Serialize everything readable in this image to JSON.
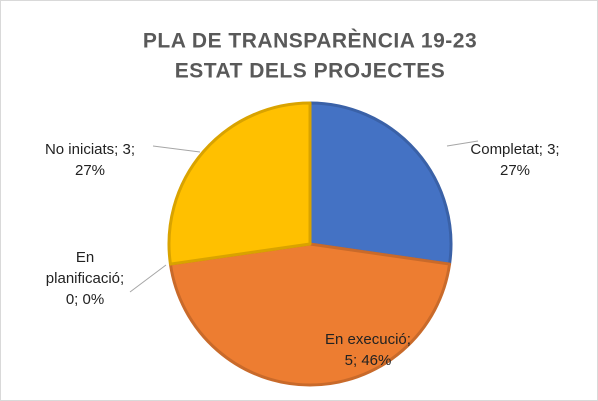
{
  "chart_data": {
    "type": "pie",
    "title": [
      "PLA DE TRANSPARÈNCIA 19-23",
      "ESTAT DELS PROJECTES"
    ],
    "values": [
      3,
      5,
      0,
      3
    ],
    "percentages": [
      27,
      46,
      0,
      27
    ],
    "value_labels": [
      [
        "Completat; 3;",
        "27%"
      ],
      [
        "En execució;",
        "5; 46%"
      ],
      [
        "En",
        "planificació;",
        "0; 0%"
      ],
      [
        "No iniciats; 3;",
        "27%"
      ]
    ],
    "colors": [
      "#4472c4",
      "#ed7d31",
      "#a5a5a5",
      "#ffc000"
    ]
  }
}
